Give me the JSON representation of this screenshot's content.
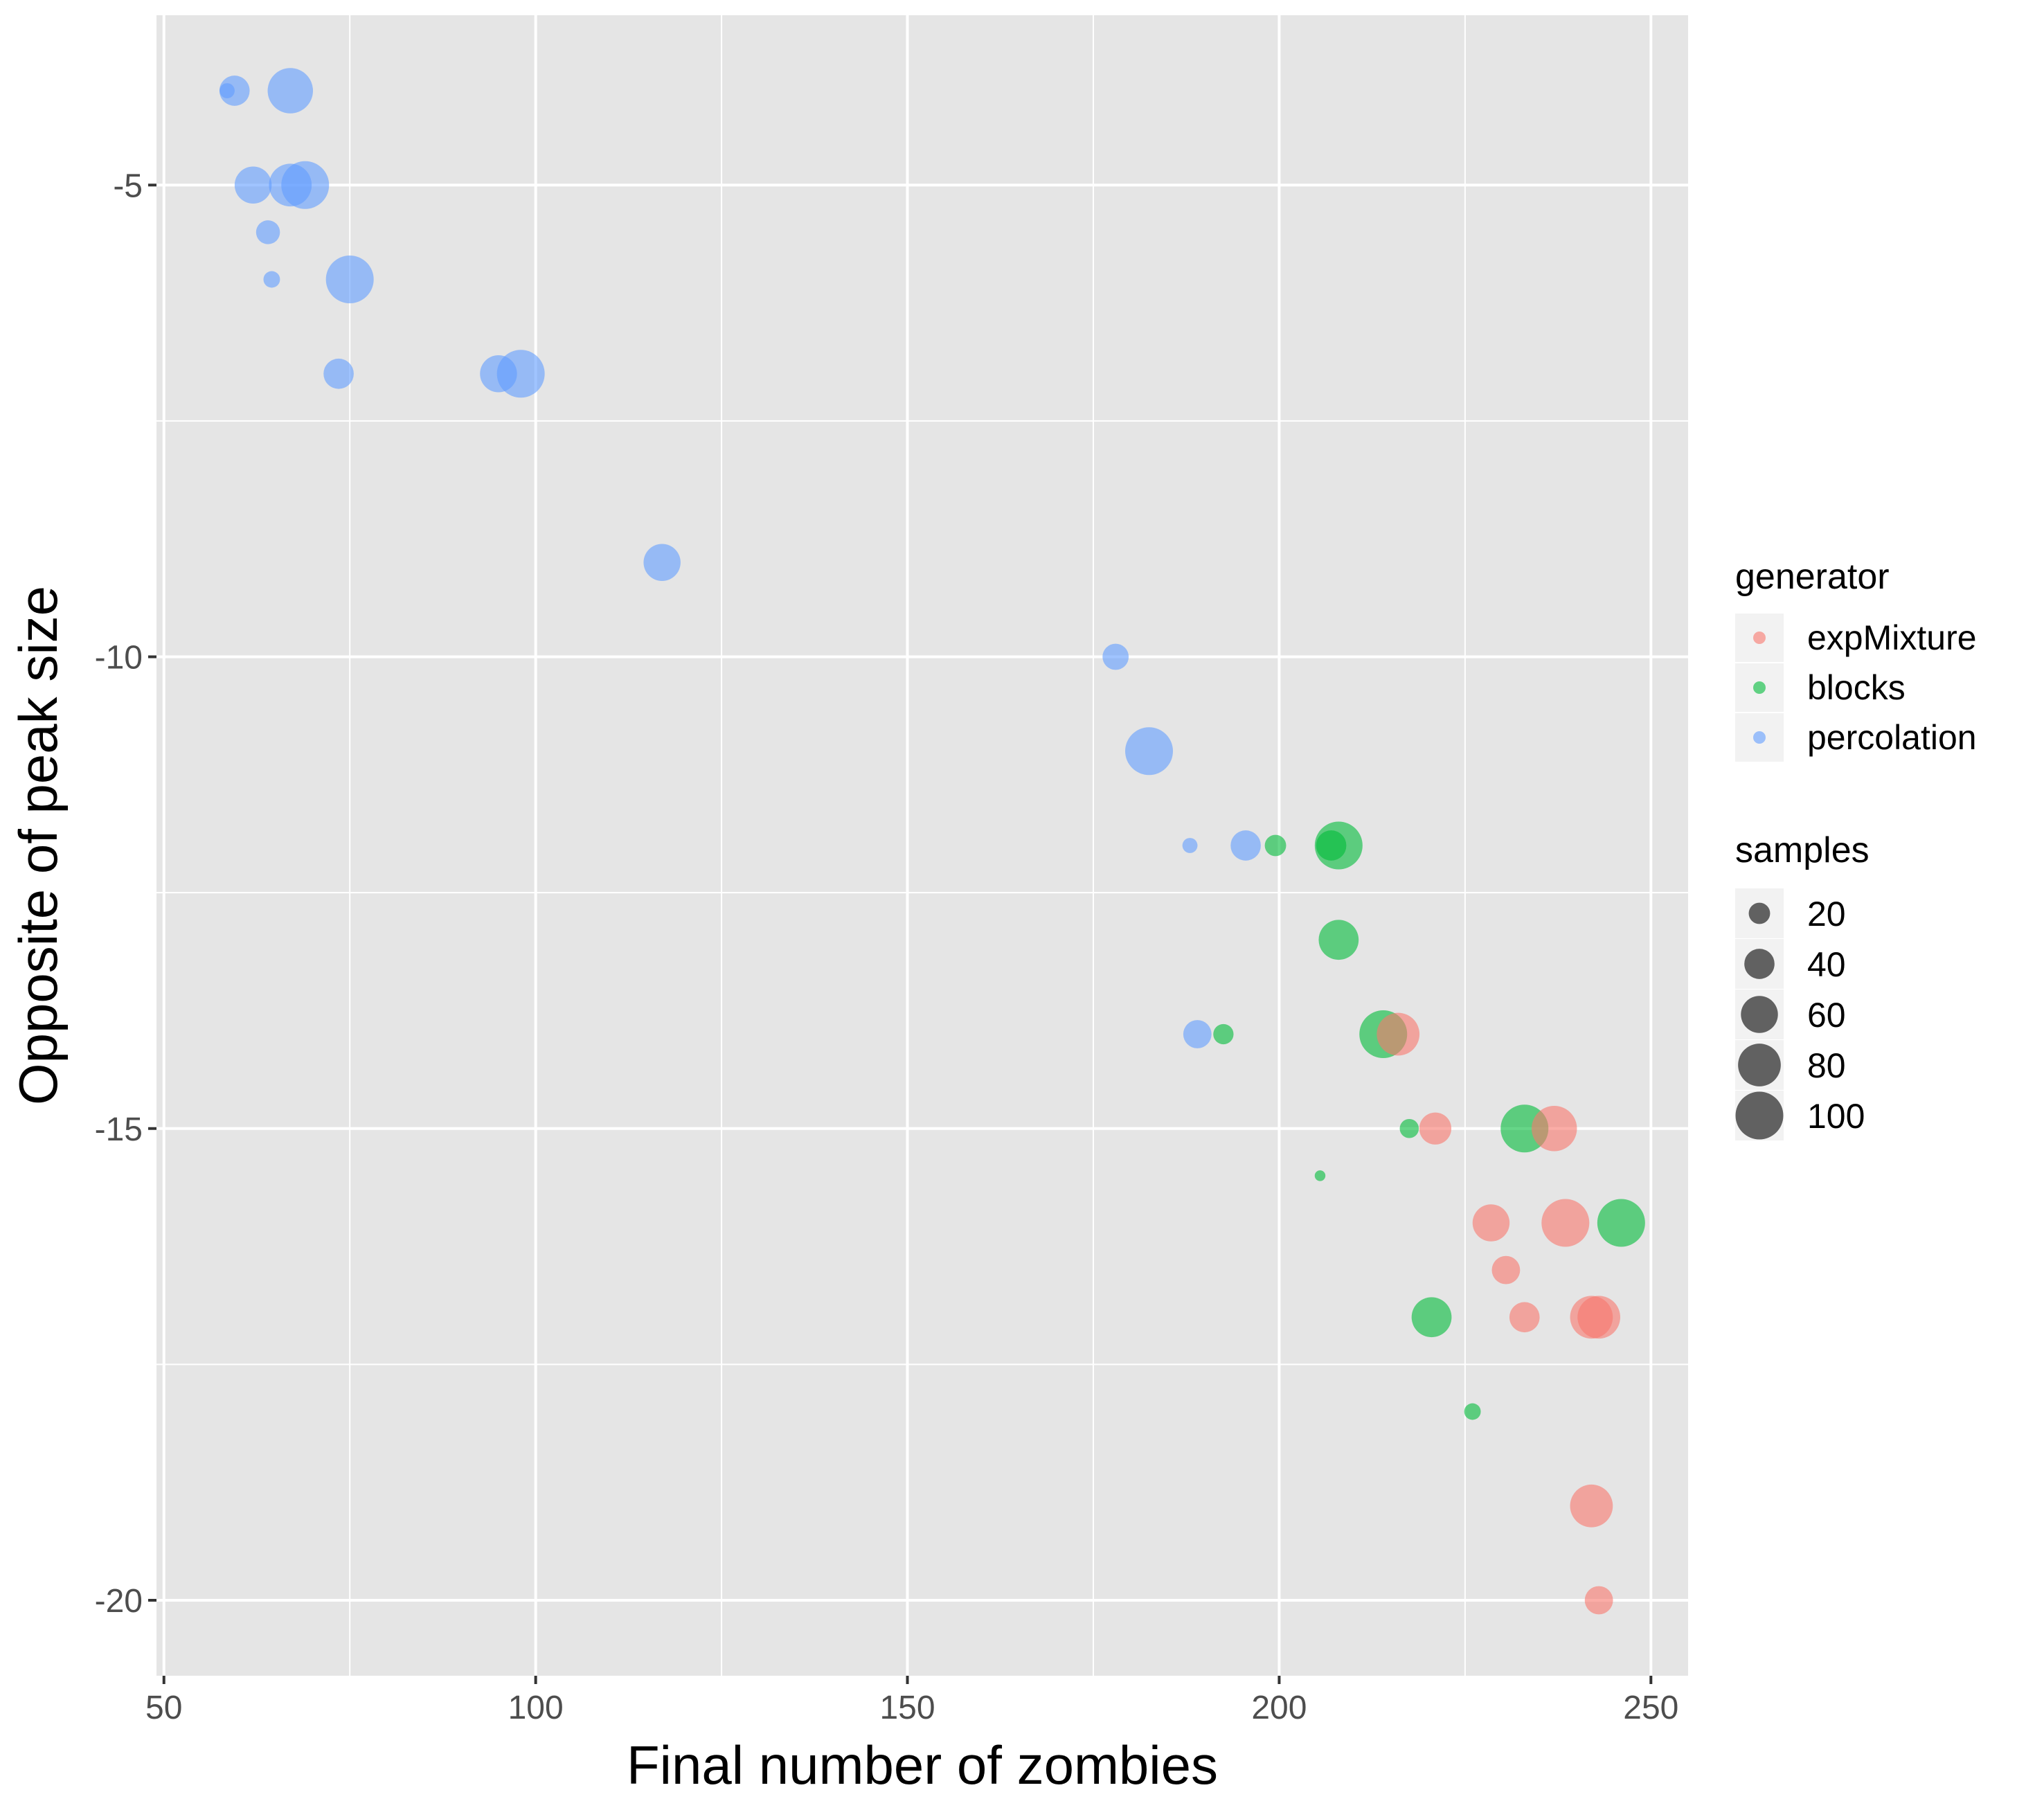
{
  "chart_data": {
    "type": "scatter",
    "title": "",
    "xlabel": "Final number of zombies",
    "ylabel": "Opposite of peak size",
    "xlim": [
      49,
      255
    ],
    "ylim": [
      -20.8,
      -3.2
    ],
    "x_ticks": [
      50,
      100,
      150,
      200,
      250
    ],
    "x_tick_labels": [
      "50",
      "100",
      "150",
      "200",
      "250"
    ],
    "y_ticks": [
      -5,
      -10,
      -15,
      -20
    ],
    "y_tick_labels": [
      "-5",
      "-10",
      "-15",
      "-20"
    ],
    "grid": true,
    "background": "#E5E5E5",
    "legend_position": "right",
    "color_legend": {
      "title": "generator",
      "entries": [
        {
          "label": "expMixture",
          "color": "#F8766D"
        },
        {
          "label": "blocks",
          "color": "#00BA38"
        },
        {
          "label": "percolation",
          "color": "#619CFF"
        }
      ]
    },
    "size_legend": {
      "title": "samples",
      "entries": [
        {
          "label": "20",
          "value": 20
        },
        {
          "label": "40",
          "value": 40
        },
        {
          "label": "60",
          "value": 60
        },
        {
          "label": "80",
          "value": 80
        },
        {
          "label": "100",
          "value": 100
        }
      ]
    },
    "series": [
      {
        "name": "percolation",
        "color": "#619CFF",
        "points": [
          {
            "x": 58.5,
            "y": -4,
            "samples": 10
          },
          {
            "x": 59.5,
            "y": -4,
            "samples": 40
          },
          {
            "x": 67,
            "y": -4,
            "samples": 90
          },
          {
            "x": 62,
            "y": -5,
            "samples": 60
          },
          {
            "x": 67,
            "y": -5,
            "samples": 80
          },
          {
            "x": 69,
            "y": -5,
            "samples": 100
          },
          {
            "x": 64,
            "y": -5.5,
            "samples": 25
          },
          {
            "x": 64.5,
            "y": -6,
            "samples": 12
          },
          {
            "x": 75,
            "y": -6,
            "samples": 100
          },
          {
            "x": 73.5,
            "y": -7,
            "samples": 40
          },
          {
            "x": 95,
            "y": -7,
            "samples": 60
          },
          {
            "x": 98,
            "y": -7,
            "samples": 100
          },
          {
            "x": 117,
            "y": -9,
            "samples": 60
          },
          {
            "x": 178,
            "y": -10,
            "samples": 30
          },
          {
            "x": 182.5,
            "y": -11,
            "samples": 100
          },
          {
            "x": 188,
            "y": -12,
            "samples": 10
          },
          {
            "x": 195.5,
            "y": -12,
            "samples": 40
          },
          {
            "x": 189,
            "y": -14,
            "samples": 35
          }
        ]
      },
      {
        "name": "blocks",
        "color": "#00BA38",
        "points": [
          {
            "x": 199.5,
            "y": -12,
            "samples": 20
          },
          {
            "x": 207,
            "y": -12,
            "samples": 40
          },
          {
            "x": 208,
            "y": -12,
            "samples": 100
          },
          {
            "x": 208,
            "y": -13,
            "samples": 70
          },
          {
            "x": 192.5,
            "y": -14,
            "samples": 18
          },
          {
            "x": 214,
            "y": -14,
            "samples": 100
          },
          {
            "x": 217.5,
            "y": -15,
            "samples": 16
          },
          {
            "x": 233,
            "y": -15,
            "samples": 100
          },
          {
            "x": 205.5,
            "y": -15.5,
            "samples": 5
          },
          {
            "x": 246,
            "y": -16,
            "samples": 100
          },
          {
            "x": 220.5,
            "y": -17,
            "samples": 70
          },
          {
            "x": 226,
            "y": -18,
            "samples": 12
          }
        ]
      },
      {
        "name": "expMixture",
        "color": "#F8766D",
        "points": [
          {
            "x": 216,
            "y": -14,
            "samples": 80
          },
          {
            "x": 221,
            "y": -15,
            "samples": 45
          },
          {
            "x": 237,
            "y": -15,
            "samples": 90
          },
          {
            "x": 228.5,
            "y": -16,
            "samples": 60
          },
          {
            "x": 238.5,
            "y": -16,
            "samples": 100
          },
          {
            "x": 230.5,
            "y": -16.5,
            "samples": 35
          },
          {
            "x": 233,
            "y": -17,
            "samples": 40
          },
          {
            "x": 242,
            "y": -17,
            "samples": 80
          },
          {
            "x": 243,
            "y": -17,
            "samples": 80
          },
          {
            "x": 242,
            "y": -19,
            "samples": 80
          },
          {
            "x": 243,
            "y": -20,
            "samples": 35
          }
        ]
      }
    ]
  }
}
